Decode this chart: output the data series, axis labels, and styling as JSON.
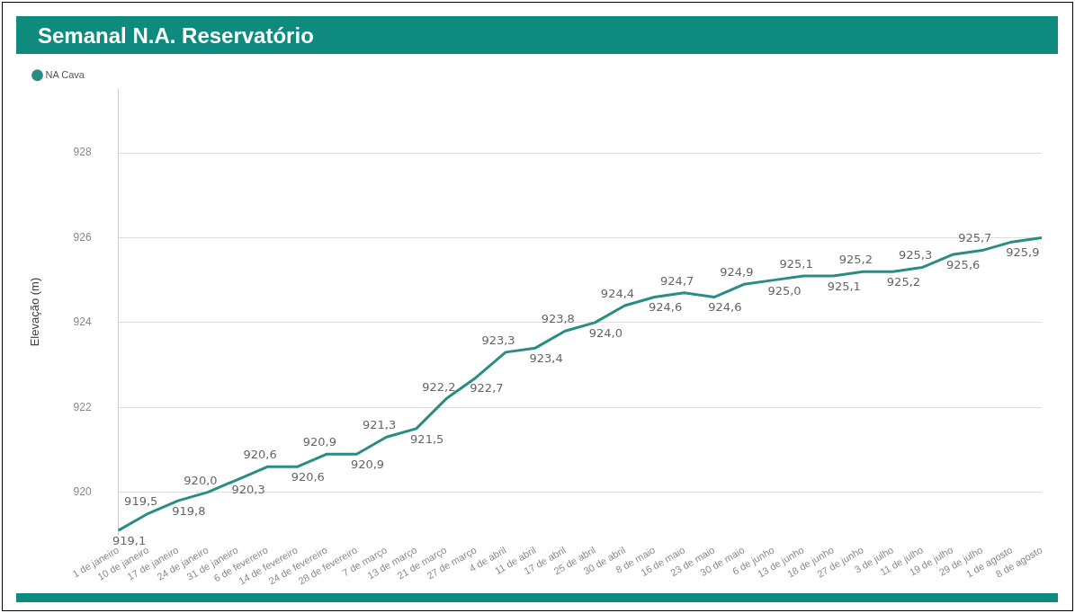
{
  "chart_data": {
    "type": "line",
    "title": "Semanal N.A. Reservatório",
    "ylabel": "Elevação (m)",
    "categories": [
      "1 de janeiro",
      "10 de janeiro",
      "17 de janeiro",
      "24 de janeiro",
      "31 de janeiro",
      "6 de fevereiro",
      "14 de fevereiro",
      "24 de fevereiro",
      "28 de fevereiro",
      "7 de março",
      "13 de março",
      "21 de março",
      "27 de março",
      "4 de abril",
      "11 de abril",
      "17 de abril",
      "25 de abril",
      "30 de abril",
      "8 de maio",
      "16 de maio",
      "23 de maio",
      "30 de maio",
      "6 de junho",
      "13 de junho",
      "18 de junho",
      "27 de junho",
      "3 de julho",
      "11 de julho",
      "19 de julho",
      "29 de julho",
      "1 de agosto",
      "8 de agosto"
    ],
    "series": [
      {
        "name": "NA Cava",
        "color": "#2a8c82",
        "values": [
          919.1,
          919.5,
          919.8,
          920.0,
          920.3,
          920.6,
          920.6,
          920.9,
          920.9,
          921.3,
          921.5,
          922.2,
          922.7,
          923.3,
          923.4,
          923.8,
          924.0,
          924.4,
          924.6,
          924.7,
          924.6,
          924.9,
          925.0,
          925.1,
          925.1,
          925.2,
          925.2,
          925.3,
          925.6,
          925.7,
          925.9,
          926.0
        ],
        "value_labels": [
          "919,1",
          "919,5",
          "919,8",
          "920,0",
          "920,3",
          "920,6",
          "920,6",
          "920,9",
          "920,9",
          "921,3",
          "921,5",
          "922,2",
          "922,7",
          "923,3",
          "923,4",
          "923,8",
          "924,0",
          "924,4",
          "924,6",
          "924,7",
          "924,6",
          "924,9",
          "925,0",
          "925,1",
          "925,1",
          "925,2",
          "925,2",
          "925,3",
          "925,6",
          "925,7",
          "925,9",
          null
        ]
      }
    ],
    "ylim": [
      919,
      929.5
    ],
    "yticks": [
      920,
      922,
      924,
      926,
      928
    ],
    "grid": "y",
    "legend": "top left",
    "marker": "none",
    "line_style": "solid"
  }
}
